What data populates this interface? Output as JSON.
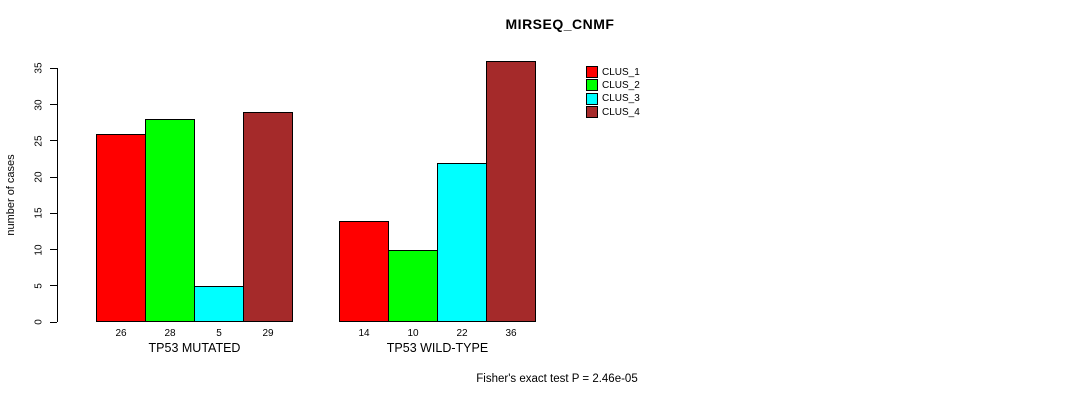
{
  "title": "MIRSEQ_CNMF",
  "chart_data": {
    "type": "bar",
    "title": "MIRSEQ_CNMF",
    "xlabel": "",
    "ylabel": "number of cases",
    "ylim": [
      0,
      35
    ],
    "yticks": [
      0,
      5,
      10,
      15,
      20,
      25,
      30,
      35
    ],
    "grid": false,
    "categories": [
      "TP53 MUTATED",
      "TP53 WILD-TYPE"
    ],
    "series": [
      {
        "name": "CLUS_1",
        "color": "#ff0000",
        "values": [
          26,
          14
        ]
      },
      {
        "name": "CLUS_2",
        "color": "#00ff00",
        "values": [
          28,
          10
        ]
      },
      {
        "name": "CLUS_3",
        "color": "#00ffff",
        "values": [
          5,
          22
        ]
      },
      {
        "name": "CLUS_4",
        "color": "#a52a2a",
        "values": [
          29,
          36
        ]
      }
    ],
    "bar_value_labels": [
      [
        "26",
        "28",
        "5",
        "29"
      ],
      [
        "14",
        "10",
        "22",
        "36"
      ]
    ],
    "legend": {
      "position": "top-right",
      "entries": [
        "CLUS_1",
        "CLUS_2",
        "CLUS_3",
        "CLUS_4"
      ]
    },
    "annotation": "Fisher's exact test P = 2.46e-05",
    "colors": {
      "background": "#ffffff",
      "axis": "#000000",
      "text": "#000000"
    }
  }
}
